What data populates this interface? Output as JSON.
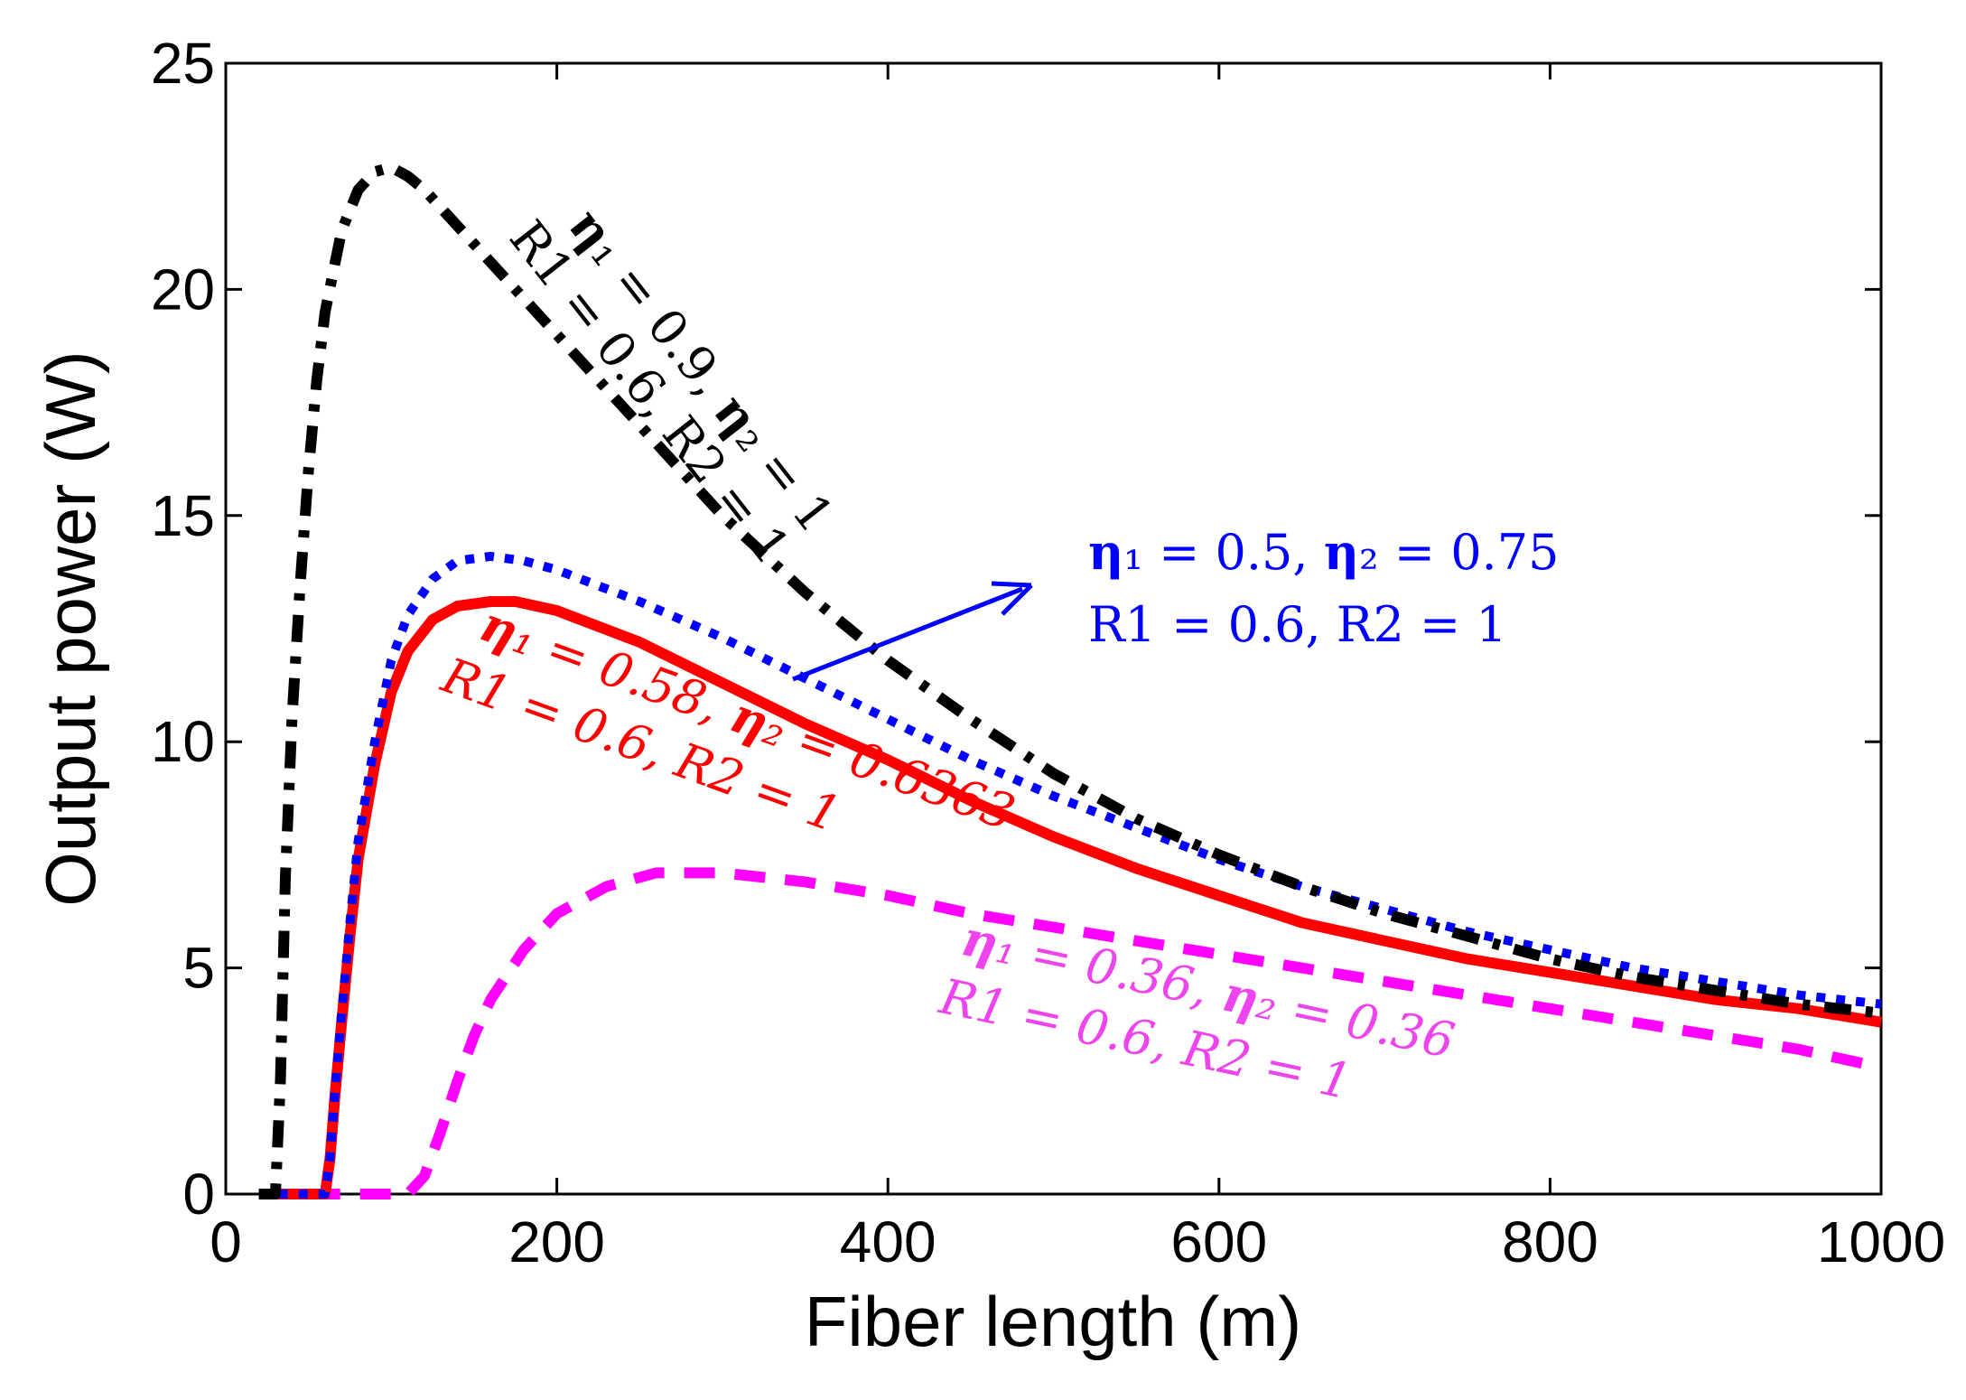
{
  "chart_data": {
    "type": "line",
    "title": "",
    "xlabel": "Fiber length (m)",
    "ylabel": "Output power (W)",
    "xlim": [
      0,
      1000
    ],
    "ylim": [
      0,
      25
    ],
    "xticks": [
      "0",
      "200",
      "400",
      "600",
      "800",
      "1000"
    ],
    "yticks": [
      "0",
      "5",
      "10",
      "15",
      "20",
      "25"
    ],
    "grid": false,
    "series": [
      {
        "color": "#000000",
        "style": "dashdot",
        "x": [
          20,
          30,
          33,
          36,
          40,
          45,
          50,
          55,
          60,
          70,
          80,
          90,
          100,
          110,
          120,
          150,
          200,
          250,
          300,
          350,
          400,
          450,
          500,
          550,
          600,
          650,
          700,
          750,
          800,
          850,
          900,
          950,
          1000
        ],
        "y": [
          0,
          0,
          2.5,
          7,
          10.5,
          13.5,
          16,
          18,
          19.5,
          21.3,
          22.2,
          22.6,
          22.7,
          22.5,
          22.2,
          21,
          19,
          17,
          15,
          13.3,
          11.8,
          10.5,
          9.3,
          8.3,
          7.5,
          6.8,
          6.2,
          5.7,
          5.2,
          4.8,
          4.5,
          4.2,
          4.0
        ]
      },
      {
        "color": "#0000ff",
        "style": "dotted",
        "x": [
          20,
          60,
          63,
          66,
          70,
          75,
          80,
          90,
          100,
          110,
          125,
          140,
          160,
          180,
          200,
          250,
          300,
          350,
          400,
          450,
          500,
          550,
          600,
          650,
          700,
          750,
          800,
          850,
          900,
          950,
          1000
        ],
        "y": [
          0,
          0,
          0.8,
          2.3,
          4,
          6,
          7.8,
          10,
          11.8,
          12.8,
          13.6,
          14,
          14.1,
          14,
          13.8,
          13.1,
          12.3,
          11.4,
          10.5,
          9.6,
          8.8,
          8.1,
          7.4,
          6.8,
          6.3,
          5.8,
          5.4,
          5.0,
          4.7,
          4.4,
          4.2
        ]
      },
      {
        "color": "#ff0000",
        "style": "solid",
        "x": [
          20,
          60,
          63,
          66,
          70,
          75,
          80,
          90,
          100,
          110,
          125,
          140,
          160,
          175,
          200,
          250,
          300,
          350,
          400,
          450,
          500,
          550,
          600,
          650,
          700,
          750,
          800,
          850,
          900,
          950,
          1000
        ],
        "y": [
          0,
          0,
          0.8,
          2.2,
          3.8,
          5.7,
          7.4,
          9.5,
          11.1,
          12,
          12.7,
          13,
          13.1,
          13.1,
          12.9,
          12.2,
          11.3,
          10.4,
          9.6,
          8.7,
          7.9,
          7.2,
          6.6,
          6.0,
          5.6,
          5.2,
          4.9,
          4.6,
          4.3,
          4.1,
          3.8
        ]
      },
      {
        "color": "#ff00ff",
        "style": "dashed",
        "x": [
          20,
          110,
          120,
          130,
          140,
          150,
          160,
          180,
          200,
          230,
          260,
          300,
          350,
          400,
          450,
          500,
          550,
          600,
          650,
          700,
          750,
          800,
          850,
          900,
          950,
          1000
        ],
        "y": [
          0,
          0,
          0.4,
          1.4,
          2.5,
          3.5,
          4.3,
          5.4,
          6.2,
          6.8,
          7.1,
          7.1,
          6.9,
          6.6,
          6.2,
          5.9,
          5.6,
          5.3,
          5.0,
          4.7,
          4.4,
          4.1,
          3.8,
          3.5,
          3.2,
          2.8
        ]
      }
    ],
    "annotations": {
      "black": {
        "line1_pre": "η",
        "line1": "₁ = 0.9, ",
        "line1_eta2": "η",
        "line1_post": "₂ = 1",
        "line2": "R1 = 0.6, R2 = 1",
        "color": "#000000"
      },
      "blue": {
        "line1_pre": "η",
        "line1": "₁ = 0.5, ",
        "line1_eta2": "η",
        "line1_post": "₂ = 0.75",
        "line2": "R1 = 0.6, R2 = 1",
        "color": "#0000ff"
      },
      "red": {
        "line1_pre": "η",
        "line1": "₁ = 0.58, ",
        "line1_eta2": "η",
        "line1_post": "₂ = 0.6363",
        "line2": "R1 = 0.6, R2 = 1",
        "color": "#ff0000"
      },
      "magenta": {
        "line1_pre": "η",
        "line1": "₁ = 0.36, ",
        "line1_eta2": "η",
        "line1_post": "₂ = 0.36",
        "line2": "R1 = 0.6, R2 = 1",
        "color": "#ee44ee"
      }
    }
  }
}
